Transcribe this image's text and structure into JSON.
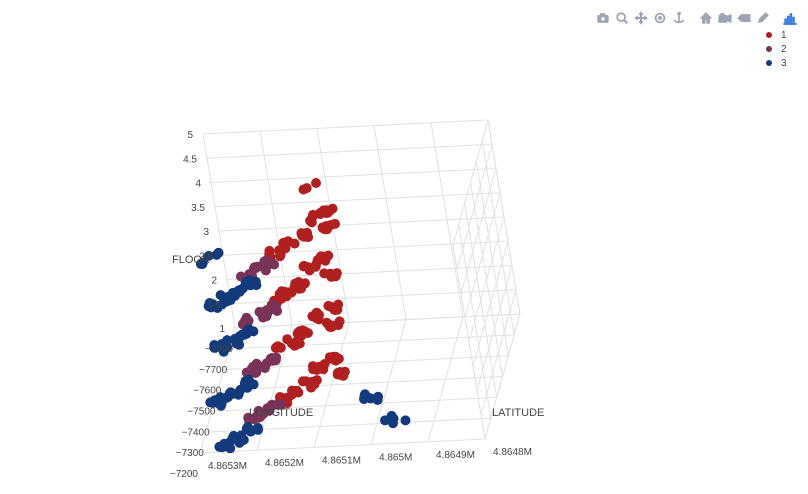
{
  "toolbar": [
    {
      "name": "camera-icon",
      "title": "Download plot as a png"
    },
    {
      "name": "zoom-icon",
      "title": "Zoom"
    },
    {
      "name": "pan-icon",
      "title": "Pan"
    },
    {
      "name": "orbit-rotation-icon",
      "title": "Orbital rotation"
    },
    {
      "name": "turntable-rotation-icon",
      "title": "Turntable rotation"
    },
    {
      "name": "home-icon",
      "title": "Reset camera to default"
    },
    {
      "name": "camera-last-save-icon",
      "title": "Reset camera to last save"
    },
    {
      "name": "hover-toggle-icon",
      "title": "Toggle show closest data on hover"
    },
    {
      "name": "edit-chart-icon",
      "title": "Edit in Chart Studio"
    },
    {
      "name": "plotly-logo-icon",
      "title": "Produced with Plotly"
    }
  ],
  "colors": {
    "series_1": "#b02020",
    "series_2": "#7a3358",
    "series_3": "#123a7c",
    "grid": "#e1e1e1",
    "toolbar": "#9da4b3",
    "logo": "#3f7fe0"
  },
  "chart_data": {
    "type": "scatter3d",
    "title": "",
    "xlabel": "LONGITUDE",
    "ylabel": "LATITUDE",
    "zlabel": "FLOOR",
    "x_ticks": [
      "−7800",
      "−7700",
      "−7600",
      "−7500",
      "−7400",
      "−7300",
      "−7200"
    ],
    "y_ticks": [
      "4.8648M",
      "4.8649M",
      "4.865M",
      "4.8651M",
      "4.8652M",
      "4.8653M"
    ],
    "z_ticks": [
      "1",
      "1.5",
      "2",
      "2.5",
      "3",
      "3.5",
      "4",
      "4.5",
      "5"
    ],
    "xlim": [
      -7800,
      -7200
    ],
    "ylim": [
      4864800,
      4865300
    ],
    "zlim": [
      1,
      5
    ],
    "legend_position": "top-right",
    "grid": true,
    "series": [
      {
        "name": "1",
        "points": [
          [
            -7630,
            4865020,
            4
          ],
          [
            -7600,
            4865000,
            4
          ],
          [
            -7560,
            4865030,
            4
          ],
          [
            -7520,
            4864990,
            4
          ],
          [
            -7480,
            4864970,
            4
          ],
          [
            -7440,
            4864950,
            4
          ],
          [
            -7640,
            4865000,
            3
          ],
          [
            -7600,
            4864980,
            3
          ],
          [
            -7560,
            4865020,
            3
          ],
          [
            -7520,
            4864970,
            3
          ],
          [
            -7480,
            4864950,
            3
          ],
          [
            -7440,
            4864940,
            3
          ],
          [
            -7640,
            4865000,
            2
          ],
          [
            -7600,
            4864980,
            2
          ],
          [
            -7560,
            4865010,
            2
          ],
          [
            -7520,
            4864960,
            2
          ],
          [
            -7480,
            4864950,
            2
          ],
          [
            -7450,
            4864930,
            2
          ],
          [
            -7630,
            4864990,
            1
          ],
          [
            -7590,
            4864970,
            1
          ],
          [
            -7550,
            4865010,
            1
          ],
          [
            -7510,
            4864960,
            1
          ],
          [
            -7470,
            4864940,
            1
          ],
          [
            -7440,
            4864920,
            1
          ],
          [
            -7760,
            4864980,
            4
          ]
        ]
      },
      {
        "name": "2",
        "points": [
          [
            -7400,
            4864940,
            4
          ],
          [
            -7370,
            4864930,
            4
          ],
          [
            -7340,
            4864910,
            4
          ],
          [
            -7410,
            4864930,
            3
          ],
          [
            -7380,
            4864920,
            3
          ],
          [
            -7350,
            4864900,
            3
          ],
          [
            -7400,
            4864920,
            2
          ],
          [
            -7370,
            4864900,
            2
          ],
          [
            -7340,
            4864890,
            2
          ],
          [
            -7410,
            4864910,
            1
          ],
          [
            -7380,
            4864890,
            1
          ],
          [
            -7360,
            4864880,
            1
          ]
        ]
      },
      {
        "name": "3",
        "points": [
          [
            -7300,
            4864920,
            4
          ],
          [
            -7260,
            4864900,
            4
          ],
          [
            -7230,
            4864880,
            4
          ],
          [
            -7200,
            4864870,
            4
          ],
          [
            -7300,
            4864900,
            3
          ],
          [
            -7260,
            4864880,
            3
          ],
          [
            -7230,
            4864860,
            3
          ],
          [
            -7290,
            4864890,
            2
          ],
          [
            -7250,
            4864870,
            2
          ],
          [
            -7220,
            4864850,
            2
          ],
          [
            -7200,
            4864840,
            2
          ],
          [
            -7300,
            4864880,
            1
          ],
          [
            -7260,
            4864860,
            1
          ],
          [
            -7230,
            4864840,
            1
          ],
          [
            -7200,
            4864880,
            5
          ],
          [
            -7180,
            4864860,
            5
          ],
          [
            -7430,
            4865060,
            1
          ],
          [
            -7420,
            4865080,
            1
          ],
          [
            -7330,
            4865120,
            1
          ],
          [
            -7300,
            4865140,
            1
          ]
        ]
      }
    ]
  }
}
